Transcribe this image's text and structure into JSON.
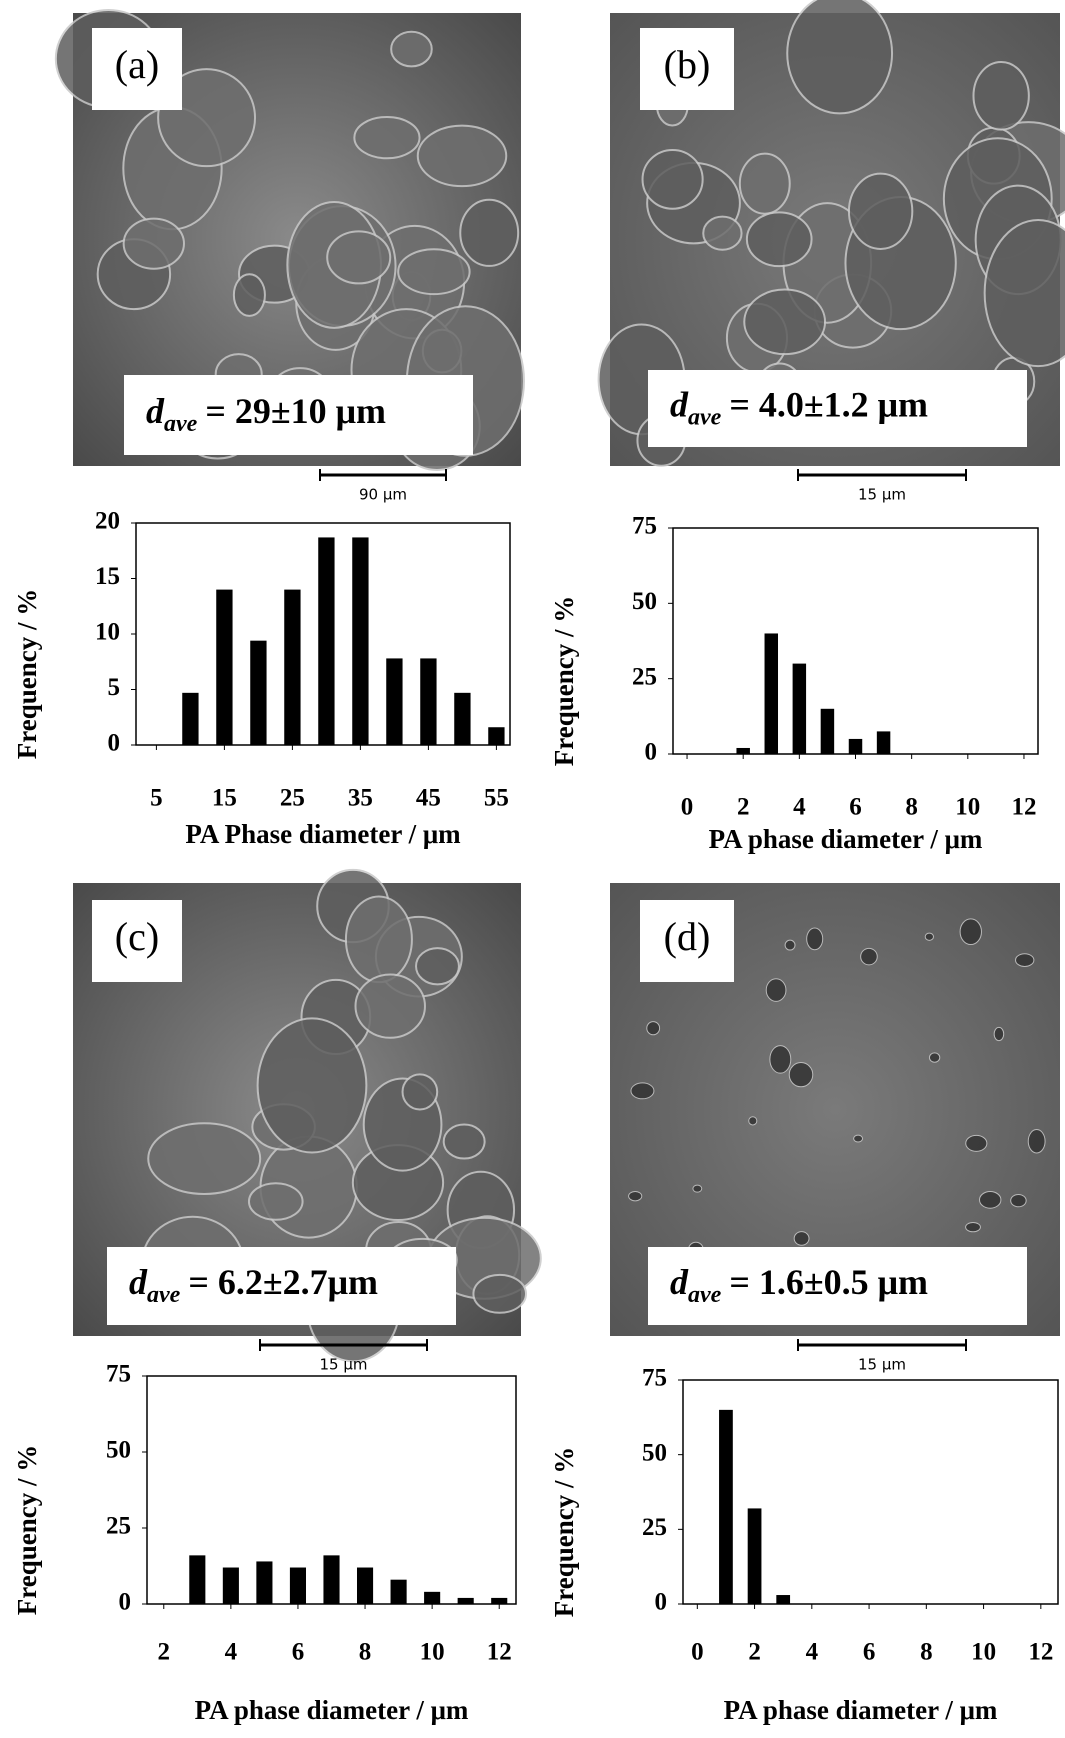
{
  "chart_data": [
    {
      "type": "bar",
      "panel_label": "(a)",
      "annotation": {
        "symbol": "d",
        "subscript": "ave",
        "text": "= 29±10 μm"
      },
      "scale_bar": "90 μm",
      "x_label": "PA Phase diameter / μm",
      "y_label": "Frequency / %",
      "x": [
        10,
        15,
        20,
        25,
        30,
        35,
        40,
        45,
        50,
        55
      ],
      "values": [
        4.7,
        14,
        9.4,
        14,
        18.7,
        18.7,
        7.8,
        7.8,
        4.7,
        1.6
      ],
      "color": "#000000",
      "xlim": [
        2,
        57
      ],
      "xticks": [
        5,
        15,
        25,
        35,
        45,
        55
      ],
      "ylim": [
        0,
        20
      ],
      "yticks": [
        0,
        5,
        10,
        15,
        20
      ]
    },
    {
      "type": "bar",
      "panel_label": "(b)",
      "annotation": {
        "symbol": "d",
        "subscript": "ave",
        "text": "= 4.0±1.2 μm"
      },
      "scale_bar": "15 μm",
      "x_label": "PA phase diameter / μm",
      "y_label": "Frequency / %",
      "x": [
        2,
        3,
        4,
        5,
        6,
        7
      ],
      "values": [
        2,
        40,
        30,
        15,
        5,
        7.5
      ],
      "color": "#000000",
      "xlim": [
        -0.5,
        12.5
      ],
      "xticks": [
        0,
        2,
        4,
        6,
        8,
        10,
        12
      ],
      "ylim": [
        0,
        75
      ],
      "yticks": [
        0,
        25,
        50,
        75
      ]
    },
    {
      "type": "bar",
      "panel_label": "(c)",
      "annotation": {
        "symbol": "d",
        "subscript": "ave",
        "text": "= 6.2±2.7μm"
      },
      "scale_bar": "15 μm",
      "x_label": "PA phase diameter / μm",
      "y_label": "Frequency / %",
      "x": [
        3,
        4,
        5,
        6,
        7,
        8,
        9,
        10,
        11,
        12
      ],
      "values": [
        16,
        12,
        14,
        12,
        16,
        12,
        8,
        4,
        2,
        2
      ],
      "color": "#000000",
      "xlim": [
        1.5,
        12.5
      ],
      "xticks": [
        2,
        4,
        6,
        8,
        10,
        12
      ],
      "ylim": [
        0,
        75
      ],
      "yticks": [
        0,
        25,
        50,
        75
      ]
    },
    {
      "type": "bar",
      "panel_label": "(d)",
      "annotation": {
        "symbol": "d",
        "subscript": "ave",
        "text": "= 1.6±0.5 μm"
      },
      "scale_bar": "15 μm",
      "x_label": "PA phase diameter / μm",
      "y_label": "Frequency / %",
      "x": [
        1,
        2,
        3
      ],
      "values": [
        65,
        32,
        3
      ],
      "color": "#000000",
      "xlim": [
        -0.5,
        12.6
      ],
      "xticks": [
        0,
        2,
        4,
        6,
        8,
        10,
        12
      ],
      "ylim": [
        0,
        75
      ],
      "yticks": [
        0,
        25,
        50,
        75
      ]
    }
  ]
}
